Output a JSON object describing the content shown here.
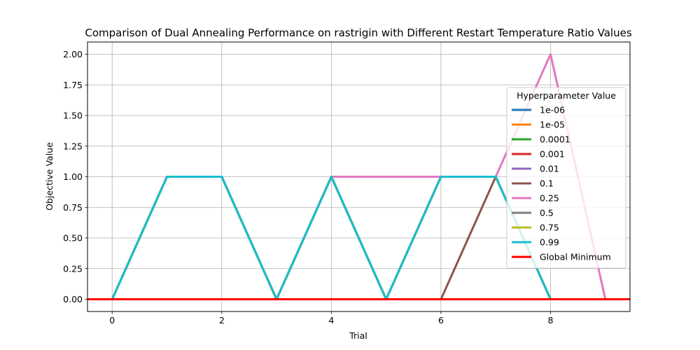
{
  "chart_data": {
    "type": "line",
    "title": "Comparison of Dual Annealing Performance on rastrigin with Different Restart Temperature Ratio Values",
    "xlabel": "Trial",
    "ylabel": "Objective Value",
    "xlim": [
      -0.45,
      9.45
    ],
    "ylim": [
      -0.1,
      2.1
    ],
    "xticks": [
      0,
      2,
      4,
      6,
      8
    ],
    "xtick_labels": [
      "0",
      "2",
      "4",
      "6",
      "8"
    ],
    "yticks": [
      0.0,
      0.25,
      0.5,
      0.75,
      1.0,
      1.25,
      1.5,
      1.75,
      2.0
    ],
    "ytick_labels": [
      "0.00",
      "0.25",
      "0.50",
      "0.75",
      "1.00",
      "1.25",
      "1.50",
      "1.75",
      "2.00"
    ],
    "grid": true,
    "legend_title": "Hyperparameter Value",
    "legend_position": "center-right",
    "x": [
      0,
      1,
      2,
      3,
      4,
      5,
      6,
      7,
      8,
      9
    ],
    "series": [
      {
        "name": "1e-06",
        "color": "#1f77b4",
        "values": [
          0,
          1,
          1,
          0,
          1,
          0,
          1,
          1,
          0,
          0
        ]
      },
      {
        "name": "1e-05",
        "color": "#ff7f0e",
        "values": [
          0,
          1,
          1,
          0,
          1,
          0,
          1,
          1,
          0,
          0
        ]
      },
      {
        "name": "0.0001",
        "color": "#2ca02c",
        "values": [
          0,
          1,
          1,
          0,
          1,
          0,
          1,
          1,
          0,
          0
        ]
      },
      {
        "name": "0.001",
        "color": "#d62728",
        "values": [
          0,
          1,
          1,
          0,
          1,
          0,
          1,
          1,
          0,
          0
        ]
      },
      {
        "name": "0.01",
        "color": "#9467bd",
        "values": [
          0,
          1,
          1,
          0,
          1,
          0,
          1,
          1,
          0,
          0
        ]
      },
      {
        "name": "0.1",
        "color": "#8c564b",
        "values": [
          0,
          1,
          1,
          0,
          1,
          0,
          0,
          1,
          0,
          0
        ]
      },
      {
        "name": "0.25",
        "color": "#e377c2",
        "values": [
          0,
          1,
          1,
          0,
          1,
          1,
          1,
          1,
          2,
          0
        ]
      },
      {
        "name": "0.5",
        "color": "#7f7f7f",
        "values": [
          0,
          1,
          1,
          0,
          1,
          0,
          1,
          1,
          0,
          0
        ]
      },
      {
        "name": "0.75",
        "color": "#bcbd22",
        "values": [
          0,
          1,
          1,
          0,
          1,
          0,
          1,
          1,
          0,
          0
        ]
      },
      {
        "name": "0.99",
        "color": "#17becf",
        "values": [
          0,
          1,
          1,
          0,
          1,
          0,
          1,
          1,
          0,
          0
        ]
      }
    ],
    "reference_line": {
      "name": "Global Minimum",
      "color": "#ff0000",
      "y": 0
    }
  }
}
